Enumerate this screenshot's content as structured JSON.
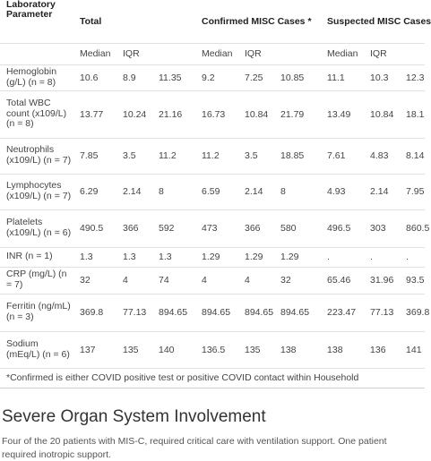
{
  "table": {
    "header": {
      "parameter": "Laboratory Parameter",
      "groups": [
        "Total",
        "Confirmed MISC Cases *",
        "Suspected MISC Cases"
      ]
    },
    "subheader": [
      "Median",
      "IQR",
      "Median",
      "IQR",
      "Median",
      "IQR"
    ],
    "rows": [
      {
        "label": "Hemoglobin (g/L) (n = 8)",
        "values": [
          "10.6",
          "8.9",
          "11.35",
          "9.2",
          "7.25",
          "10.85",
          "11.1",
          "10.3",
          "12.3"
        ]
      },
      {
        "label": "Total WBC count (x109/L) (n = 8)",
        "values": [
          "13.77",
          "10.24",
          "21.16",
          "16.73",
          "10.84",
          "21.79",
          "13.49",
          "10.84",
          "18.1"
        ]
      },
      {
        "label": "Neutrophils (x109/L) (n = 7)",
        "values": [
          "7.85",
          "3.5",
          "11.2",
          "11.2",
          "3.5",
          "18.85",
          "7.61",
          "4.83",
          "8.14"
        ]
      },
      {
        "label": "Lymphocytes (x109/L) (n = 7)",
        "values": [
          "6.29",
          "2.14",
          "8",
          "6.59",
          "2.14",
          "8",
          "4.93",
          "2.14",
          "7.95"
        ]
      },
      {
        "label": "Platelets (x109/L) (n = 6)",
        "values": [
          "490.5",
          "366",
          "592",
          "473",
          "366",
          "580",
          "496.5",
          "303",
          "860.5"
        ]
      },
      {
        "label": "INR (n = 1)",
        "values": [
          "1.3",
          "1.3",
          "1.3",
          "1.29",
          "1.29",
          "1.29",
          ".",
          ".",
          "."
        ]
      },
      {
        "label": "CRP (mg/L) (n = 7)",
        "values": [
          "32",
          "4",
          "74",
          "4",
          "4",
          "32",
          "65.46",
          "31.96",
          "93.5"
        ]
      },
      {
        "label": "Ferritin (ng/mL) (n = 3)",
        "values": [
          "369.8",
          "77.13",
          "894.65",
          "894.65",
          "894.65",
          "894.65",
          "223.47",
          "77.13",
          "369.8"
        ]
      },
      {
        "label": "Sodium (mEq/L) (n = 6)",
        "values": [
          "137",
          "135",
          "140",
          "136.5",
          "135",
          "138",
          "138",
          "136",
          "141"
        ]
      }
    ],
    "footnote": "*Confirmed is either COVID positive test or positive COVID contact within Household"
  },
  "section": {
    "title": "Severe Organ System Involvement",
    "body": "Four of the 20 patients with MIS-C, required critical care with ventilation support. One patient required inotropic support."
  }
}
